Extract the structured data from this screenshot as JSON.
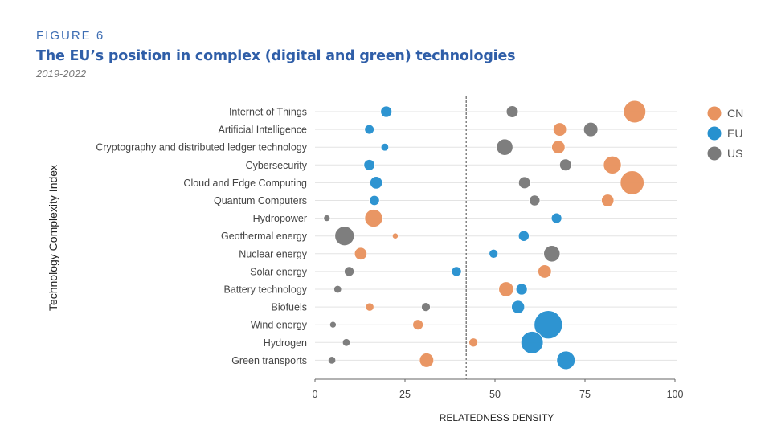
{
  "header": {
    "figure_label": "FIGURE 6",
    "title": "The EU’s position in complex (digital and green) technologies",
    "subtitle": "2019-2022"
  },
  "chart_data": {
    "type": "scatter",
    "subtype": "bubble-dot-plot",
    "title": "The EU’s position in complex (digital and green) technologies",
    "subtitle": "2019-2022",
    "xlabel": "RELATEDNESS DENSITY",
    "ylabel": "Technology Complexity Index",
    "xlim": [
      0,
      100
    ],
    "xticks": [
      0,
      25,
      50,
      75,
      100
    ],
    "reference_line": {
      "x": 42,
      "style": "dashed"
    },
    "grid": "horizontal",
    "legend": {
      "placement": "top-right",
      "entries": [
        "CN",
        "EU",
        "US"
      ]
    },
    "colors": {
      "CN": "#E8935F",
      "EU": "#2791CF",
      "US": "#7A7A7A"
    },
    "size_note": "bubble size is a relative index (approximate)",
    "categories": [
      "Internet of Things",
      "Artificial Intelligence",
      "Cryptography and distributed ledger technology",
      "Cybersecurity",
      "Cloud and Edge Computing",
      "Quantum Computers",
      "Hydropower",
      "Geothermal energy",
      "Nuclear energy",
      "Solar energy",
      "Battery technology",
      "Biofuels",
      "Wind energy",
      "Hydrogen",
      "Green transports"
    ],
    "series": [
      {
        "name": "CN",
        "x": [
          88.8,
          68.0,
          67.6,
          82.6,
          88.1,
          81.3,
          16.3,
          22.3,
          12.7,
          63.8,
          53.1,
          15.2,
          28.6,
          44.0,
          31.0
        ],
        "size": [
          7.5,
          4.5,
          4.5,
          6.0,
          8.0,
          4.2,
          6.0,
          2.0,
          4.2,
          4.5,
          5.0,
          2.8,
          3.5,
          3.0,
          4.8
        ]
      },
      {
        "name": "EU",
        "x": [
          19.8,
          15.1,
          19.4,
          15.1,
          17.0,
          16.5,
          67.1,
          58.0,
          49.6,
          39.3,
          57.4,
          56.4,
          64.8,
          60.3,
          69.7
        ],
        "size": [
          3.8,
          3.2,
          2.6,
          3.7,
          4.2,
          3.4,
          3.5,
          3.6,
          3.0,
          3.3,
          3.8,
          4.4,
          9.5,
          7.5,
          6.2
        ]
      },
      {
        "name": "US",
        "x": [
          54.8,
          76.6,
          52.7,
          69.6,
          58.2,
          61.0,
          3.3,
          8.2,
          65.8,
          9.5,
          6.3,
          30.8,
          5.0,
          8.7,
          4.7
        ],
        "size": [
          4.0,
          4.8,
          5.5,
          4.0,
          4.0,
          3.6,
          2.2,
          6.5,
          5.5,
          3.3,
          2.6,
          3.0,
          2.2,
          2.6,
          2.6
        ]
      }
    ]
  }
}
